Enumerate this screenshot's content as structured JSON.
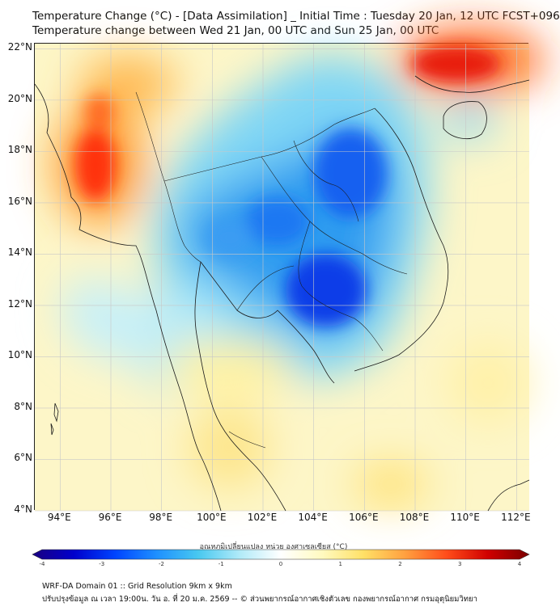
{
  "header": {
    "title_line1": "Temperature Change (°C) - [Data Assimilation] _ Initial Time : Tuesday 20 Jan, 12 UTC FCST+096",
    "title_line2": "Temperature change between Wed 21 Jan, 00 UTC and Sun 25 Jan, 00 UTC"
  },
  "map": {
    "lon_range": [
      93,
      112.5
    ],
    "lat_range": [
      4,
      22.2
    ],
    "lat_ticks": [
      {
        "label": "22°N",
        "value": 22
      },
      {
        "label": "20°N",
        "value": 20
      },
      {
        "label": "18°N",
        "value": 18
      },
      {
        "label": "16°N",
        "value": 16
      },
      {
        "label": "14°N",
        "value": 14
      },
      {
        "label": "12°N",
        "value": 12
      },
      {
        "label": "10°N",
        "value": 10
      },
      {
        "label": "8°N",
        "value": 8
      },
      {
        "label": "6°N",
        "value": 6
      },
      {
        "label": "4°N",
        "value": 4
      }
    ],
    "lon_ticks": [
      {
        "label": "94°E",
        "value": 94
      },
      {
        "label": "96°E",
        "value": 96
      },
      {
        "label": "98°E",
        "value": 98
      },
      {
        "label": "100°E",
        "value": 100
      },
      {
        "label": "102°E",
        "value": 102
      },
      {
        "label": "104°E",
        "value": 104
      },
      {
        "label": "106°E",
        "value": 106
      },
      {
        "label": "108°E",
        "value": 108
      },
      {
        "label": "110°E",
        "value": 110
      },
      {
        "label": "112°E",
        "value": 112
      }
    ],
    "field_regions": [
      {
        "name": "warm-bay-of-bengal",
        "lon": 95.5,
        "lat": 18.5,
        "value": 2.5
      },
      {
        "name": "warm-myanmar-west",
        "lon": 96.2,
        "lat": 17.3,
        "value": 2.8
      },
      {
        "name": "warm-northwest",
        "lon": 96.5,
        "lat": 21.3,
        "value": 2.2
      },
      {
        "name": "warm-south-china",
        "lon": 109.5,
        "lat": 21.6,
        "value": 2.8
      },
      {
        "name": "cold-cambodia",
        "lon": 105.2,
        "lat": 12.7,
        "value": -2.5
      },
      {
        "name": "cold-laos",
        "lon": 104.7,
        "lat": 16.5,
        "value": -1.8
      },
      {
        "name": "cold-thailand-central",
        "lon": 101.5,
        "lat": 14.5,
        "value": -1.6
      },
      {
        "name": "cold-hainan",
        "lon": 110.1,
        "lat": 19.4,
        "value": -0.7
      },
      {
        "name": "warm-gulf-of-thailand",
        "lon": 101.0,
        "lat": 10.5,
        "value": 0.6
      },
      {
        "name": "warm-south-china-sea",
        "lon": 109.5,
        "lat": 10.0,
        "value": 0.5
      }
    ]
  },
  "colorbar": {
    "label": "อุณหภูมิเปลี่ยนแปลง หน่วย องศาเซลเซียส (°C)",
    "min": -4,
    "max": 4,
    "ticks": [
      -4,
      -3,
      -2,
      -1,
      0,
      1,
      2,
      3,
      4
    ],
    "colors": [
      "#1a0080",
      "#0000cc",
      "#0044ff",
      "#1e90ff",
      "#48c8f0",
      "#b0eaf8",
      "#ffffff",
      "#fffac0",
      "#ffe066",
      "#ffa040",
      "#ff4d1a",
      "#d00000",
      "#7a0000"
    ]
  },
  "footer": {
    "line1": "WRF-DA Domain 01 :: Grid Resolution 9km x 9km",
    "line2": "ปรับปรุงข้อมูล ณ เวลา 19:00น. วัน อ. ที่ 20 ม.ค. 2569 -- © ส่วนพยากรณ์อากาศเชิงตัวเลข กองพยากรณ์อากาศ กรมอุตุนิยมวิทยา"
  }
}
